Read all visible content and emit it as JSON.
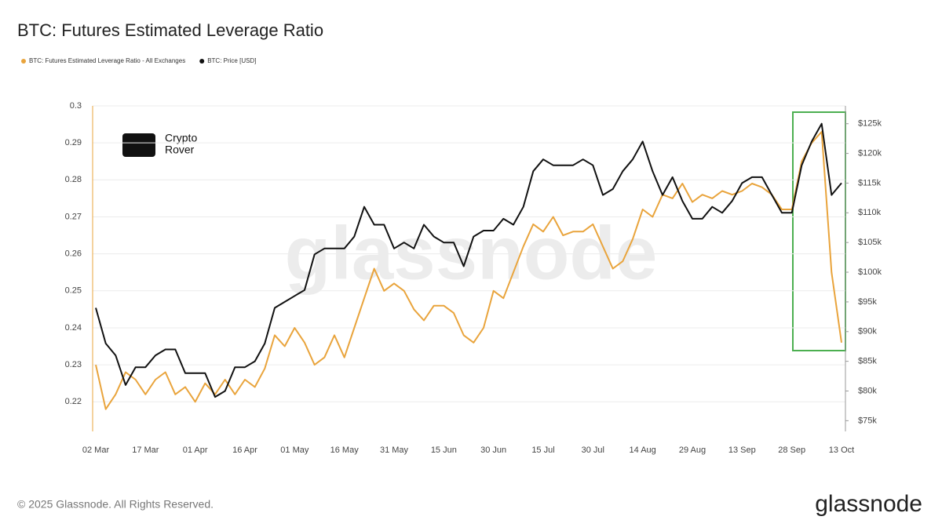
{
  "chart_data": {
    "type": "line",
    "title": "BTC: Futures Estimated Leverage Ratio",
    "categories": [
      "02 Mar",
      null,
      null,
      null,
      null,
      "17 Mar",
      null,
      null,
      null,
      null,
      "01 Apr",
      null,
      null,
      null,
      null,
      "16 Apr",
      null,
      null,
      null,
      null,
      "01 May",
      null,
      null,
      null,
      null,
      "16 May",
      null,
      null,
      null,
      null,
      "31 May",
      null,
      null,
      null,
      null,
      "15 Jun",
      null,
      null,
      null,
      null,
      "30 Jun",
      null,
      null,
      null,
      null,
      "15 Jul",
      null,
      null,
      null,
      null,
      "30 Jul",
      null,
      null,
      null,
      null,
      "14 Aug",
      null,
      null,
      null,
      null,
      "29 Aug",
      null,
      null,
      null,
      null,
      "13 Sep",
      null,
      null,
      null,
      null,
      "28 Sep",
      null,
      null,
      null,
      null,
      "13 Oct"
    ],
    "series": [
      {
        "name": "BTC: Futures Estimated Leverage Ratio - All Exchanges",
        "color": "#e9a43c",
        "axis": "y",
        "values": [
          0.23,
          0.218,
          0.222,
          0.228,
          0.226,
          0.222,
          0.226,
          0.228,
          0.222,
          0.224,
          0.22,
          0.225,
          0.222,
          0.226,
          0.222,
          0.226,
          0.224,
          0.229,
          0.238,
          0.235,
          0.24,
          0.236,
          0.23,
          0.232,
          0.238,
          0.232,
          0.24,
          0.248,
          0.256,
          0.25,
          0.252,
          0.25,
          0.245,
          0.242,
          0.246,
          0.246,
          0.244,
          0.238,
          0.236,
          0.24,
          0.25,
          0.248,
          0.255,
          0.262,
          0.268,
          0.266,
          0.27,
          0.265,
          0.266,
          0.266,
          0.268,
          0.262,
          0.256,
          0.258,
          0.264,
          0.272,
          0.27,
          0.276,
          0.275,
          0.279,
          0.274,
          0.276,
          0.275,
          0.277,
          0.276,
          0.277,
          0.279,
          0.278,
          0.276,
          0.272,
          0.272,
          0.285,
          0.29,
          0.293,
          0.255,
          0.236
        ]
      },
      {
        "name": "BTC: Price [USD]",
        "color": "#111111",
        "axis": "y2",
        "values": [
          94,
          88,
          86,
          81,
          84,
          84,
          86,
          87,
          87,
          83,
          83,
          83,
          79,
          80,
          84,
          84,
          85,
          88,
          94,
          95,
          96,
          97,
          103,
          104,
          104,
          104,
          106,
          111,
          108,
          108,
          104,
          105,
          104,
          108,
          106,
          105,
          105,
          101,
          106,
          107,
          107,
          109,
          108,
          111,
          117,
          119,
          118,
          118,
          118,
          119,
          118,
          113,
          114,
          117,
          119,
          122,
          117,
          113,
          116,
          112,
          109,
          109,
          111,
          110,
          112,
          115,
          116,
          116,
          113,
          110,
          110,
          118,
          122,
          125,
          113,
          115
        ]
      }
    ],
    "ylim": [
      0.212,
      0.3
    ],
    "yticks": [
      0.22,
      0.23,
      0.24,
      0.25,
      0.26,
      0.27,
      0.28,
      0.29,
      0.3
    ],
    "y2lim": [
      73.2,
      128
    ],
    "y2ticks": [
      {
        "value": 75,
        "label": "$75k"
      },
      {
        "value": 80,
        "label": "$80k"
      },
      {
        "value": 85,
        "label": "$85k"
      },
      {
        "value": 90,
        "label": "$90k"
      },
      {
        "value": 95,
        "label": "$95k"
      },
      {
        "value": 100,
        "label": "$100k"
      },
      {
        "value": 105,
        "label": "$105k"
      },
      {
        "value": 110,
        "label": "$110k"
      },
      {
        "value": 115,
        "label": "$115k"
      },
      {
        "value": 120,
        "label": "$120k"
      },
      {
        "value": 125,
        "label": "$125k"
      }
    ],
    "grid": true,
    "logo_text": [
      "Crypto",
      "Rover"
    ],
    "watermark": "glassnode",
    "footer": "© 2025 Glassnode. All Rights Reserved.",
    "brand": "glassnode"
  }
}
